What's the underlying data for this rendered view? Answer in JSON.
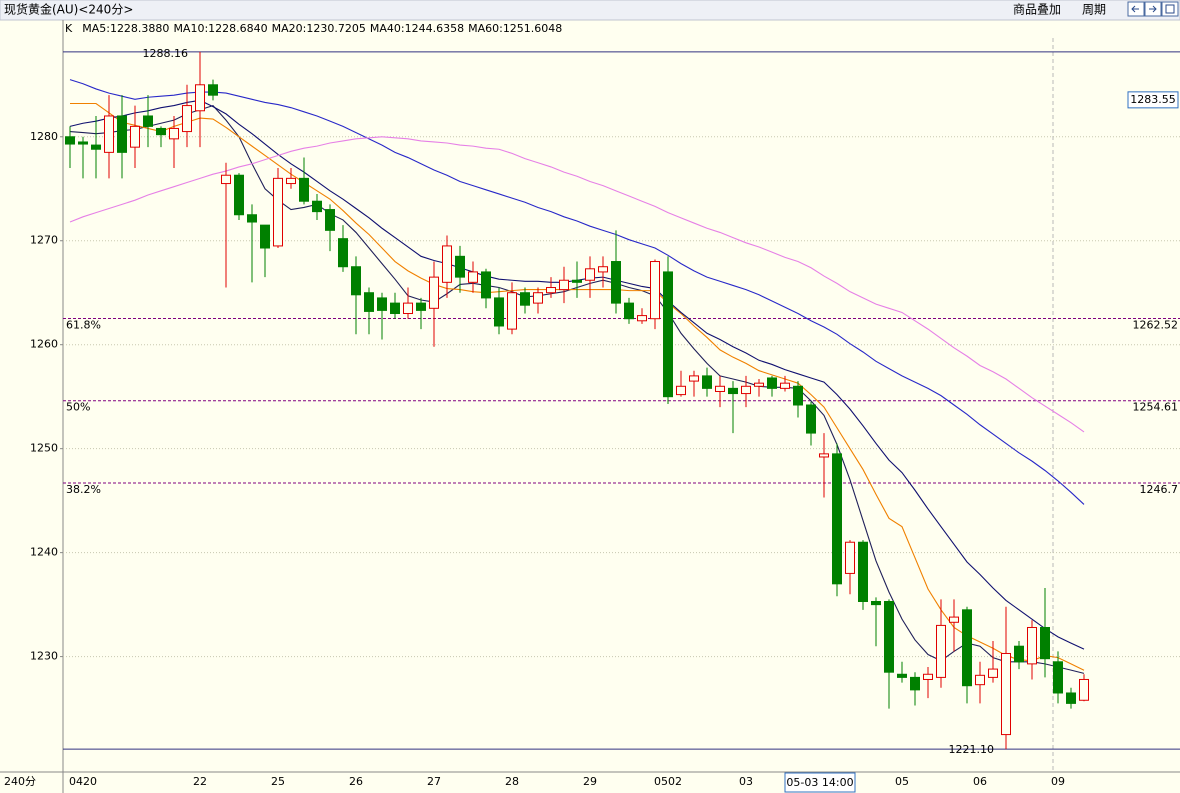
{
  "header": {
    "title": "现货黄金(AU)<240分>",
    "toolbar": [
      "商品叠加",
      "周期"
    ]
  },
  "chart_data": {
    "type": "candlestick",
    "categories": [
      null,
      "0420",
      null,
      null,
      null,
      null,
      null,
      null,
      null,
      null,
      "22",
      null,
      null,
      null,
      null,
      null,
      "25",
      null,
      null,
      null,
      null,
      null,
      "26",
      null,
      null,
      null,
      null,
      null,
      "27",
      null,
      null,
      null,
      null,
      null,
      "28",
      null,
      null,
      null,
      null,
      null,
      "29",
      null,
      null,
      null,
      null,
      null,
      "0502",
      null,
      null,
      null,
      null,
      null,
      "03",
      null,
      null,
      null,
      null,
      null,
      null,
      null,
      null,
      null,
      null,
      null,
      "05",
      null,
      null,
      null,
      null,
      null,
      "06",
      null,
      null,
      null,
      null,
      null,
      "09",
      null,
      null
    ],
    "x_axis_label": "240分",
    "cursor_time": "05-03 14:00",
    "cursor_price": 1283.55,
    "ylim": [
      1218.9,
      1289.5
    ],
    "yticks": [
      1230,
      1240,
      1250,
      1260,
      1270,
      1280
    ],
    "grid": true,
    "extreme_labels": [
      "1288.16",
      "1221.10"
    ],
    "levels": [
      {
        "label": "61.8%",
        "value": 1262.52
      },
      {
        "label": "50%",
        "value": 1254.61
      },
      {
        "label": "38.2%",
        "value": 1246.7
      }
    ],
    "up_color": "#e00000",
    "down_color": "#008000",
    "level_color": "#800080",
    "series": [
      {
        "name": "K",
        "open": [
          1280,
          1279.5,
          1279.2,
          1278.5,
          1282,
          1279,
          1282,
          1280.8,
          1279.8,
          1280.5,
          1282.5,
          1285,
          1275.5,
          1276.3,
          1272.5,
          1271.5,
          1269.5,
          1275.5,
          1276,
          1273.8,
          1273,
          1270.2,
          1267.5,
          1265,
          1264.5,
          1264,
          1263,
          1264,
          1263.5,
          1266,
          1268.5,
          1266,
          1267,
          1264.5,
          1261.5,
          1265,
          1264,
          1265,
          1265.3,
          1266.2,
          1266.2,
          1267,
          1268,
          1264,
          1262.3,
          1262.5,
          1267,
          1255.2,
          1256.5,
          1257,
          1255.5,
          1255.8,
          1255.3,
          1256,
          1256.8,
          1255.8,
          1256,
          1254.2,
          1249.2,
          1249.5,
          1238,
          1241,
          1235.3,
          1235.3,
          1228.3,
          1228,
          1227.8,
          1228,
          1233.3,
          1234.5,
          1227.3,
          1228,
          1222.5,
          1231,
          1229.3,
          1232.8,
          1229.5,
          1226.5,
          1225.8
        ],
        "high": [
          1281,
          1280,
          1282,
          1284,
          1284,
          1283,
          1284,
          1281,
          1282,
          1285,
          1288.16,
          1285.5,
          1277.5,
          1276.5,
          1273.5,
          1271.5,
          1277,
          1277,
          1278,
          1274.5,
          1273.5,
          1271.5,
          1268.5,
          1265.5,
          1265,
          1265,
          1265.5,
          1264.5,
          1268,
          1270.5,
          1269.5,
          1268,
          1267.3,
          1265.5,
          1266,
          1265.5,
          1265.5,
          1266.5,
          1267.5,
          1268,
          1268.5,
          1268.5,
          1271,
          1264.5,
          1263.5,
          1268.2,
          1268.5,
          1257.5,
          1257.5,
          1257.8,
          1257,
          1256.5,
          1257,
          1256.7,
          1257,
          1257,
          1256.5,
          1254.5,
          1251.5,
          1250.5,
          1241.2,
          1241.2,
          1235.7,
          1235.5,
          1229.5,
          1228.5,
          1229,
          1235.5,
          1235.5,
          1234.8,
          1229.5,
          1231.5,
          1234.8,
          1231.5,
          1233.5,
          1236.6,
          1230.5,
          1227,
          1228.3
        ],
        "low": [
          1277,
          1276,
          1276,
          1276,
          1276,
          1277,
          1279,
          1279,
          1277,
          1279,
          1279,
          1283.5,
          1265.5,
          1272,
          1266,
          1266.5,
          1269.3,
          1275,
          1273.5,
          1272,
          1269,
          1267,
          1261,
          1261,
          1260.5,
          1262.5,
          1262.5,
          1261.5,
          1259.8,
          1264.5,
          1265,
          1265,
          1263.5,
          1261,
          1261,
          1263,
          1263,
          1264.5,
          1264,
          1264.5,
          1264.5,
          1265.5,
          1263,
          1262,
          1262,
          1261.5,
          1254.3,
          1255,
          1255,
          1255,
          1254,
          1251.5,
          1254,
          1255,
          1255,
          1255.5,
          1253,
          1250.3,
          1245.3,
          1235.8,
          1236,
          1234.5,
          1231,
          1225,
          1227.5,
          1225.3,
          1226,
          1227,
          1230.5,
          1225.5,
          1225.5,
          1227.5,
          1221.1,
          1228.8,
          1227.8,
          1228,
          1225.5,
          1225,
          1225.7
        ],
        "close": [
          1279.3,
          1279.3,
          1278.8,
          1282,
          1278.5,
          1281,
          1281,
          1280.2,
          1280.8,
          1283,
          1285,
          1284,
          1276.3,
          1272.5,
          1271.8,
          1269.3,
          1276,
          1276,
          1273.8,
          1272.8,
          1271,
          1267.5,
          1264.8,
          1263.2,
          1263.3,
          1263,
          1264,
          1263.3,
          1266.5,
          1269.5,
          1266.5,
          1267,
          1264.5,
          1261.8,
          1265,
          1263.8,
          1265,
          1265.5,
          1266.2,
          1266,
          1267.3,
          1267.5,
          1264,
          1262.5,
          1262.8,
          1268,
          1255,
          1256,
          1257,
          1255.8,
          1256,
          1255.3,
          1256,
          1256.3,
          1255.8,
          1256.3,
          1254.2,
          1251.5,
          1249.5,
          1237,
          1241,
          1235.3,
          1235,
          1228.5,
          1228,
          1226.8,
          1228.3,
          1233,
          1233.8,
          1227.2,
          1228.2,
          1228.8,
          1230.3,
          1229.5,
          1232.8,
          1229.8,
          1226.5,
          1225.5,
          1227.8
        ]
      },
      {
        "name": "MA5:1228.3880",
        "color": "#20205a",
        "values": [
          1280.5,
          1280.4,
          1280.3,
          1280.4,
          1280.6,
          1280.7,
          1281.0,
          1281.3,
          1281.6,
          1282.2,
          1282.6,
          1283.0,
          1281.6,
          1280.0,
          1277.4,
          1275.0,
          1273.9,
          1273.0,
          1273.2,
          1273.5,
          1272.6,
          1272.0,
          1270.8,
          1269.3,
          1267.8,
          1266.3,
          1264.7,
          1264.3,
          1264.1,
          1264.9,
          1265.8,
          1265.9,
          1265.7,
          1265.5,
          1265.1,
          1264.6,
          1264.7,
          1264.9,
          1265.1,
          1265.5,
          1265.9,
          1266.2,
          1265.9,
          1265.5,
          1265.2,
          1264.7,
          1263.1,
          1261.1,
          1259.6,
          1258.2,
          1257.0,
          1256.7,
          1256.4,
          1256.0,
          1255.9,
          1255.9,
          1255.8,
          1254.6,
          1253.2,
          1250.4,
          1247.0,
          1243.1,
          1239.2,
          1236.2,
          1233.6,
          1231.6,
          1230.2,
          1229.6,
          1230.5,
          1231.3,
          1231.0,
          1229.9,
          1229.5,
          1229.5,
          1229.5,
          1229.3,
          1229.0,
          1228.7,
          1228.388
        ]
      },
      {
        "name": "MA10:1228.6840",
        "color": "#f08000",
        "values": [
          1283.2,
          1283.2,
          1283.2,
          1282.3,
          1281.4,
          1281.1,
          1280.8,
          1280.5,
          1281.0,
          1281.4,
          1281.8,
          1281.7,
          1280.9,
          1280.0,
          1279.1,
          1278.2,
          1277.3,
          1276.4,
          1275.6,
          1274.8,
          1274.0,
          1272.9,
          1271.7,
          1270.6,
          1269.3,
          1268.0,
          1267.1,
          1266.4,
          1265.8,
          1265.4,
          1265.3,
          1265.1,
          1265.0,
          1265.1,
          1265.2,
          1265.3,
          1265.3,
          1265.3,
          1265.3,
          1265.3,
          1265.3,
          1265.3,
          1265.3,
          1265.2,
          1265.2,
          1265.2,
          1264.0,
          1263.0,
          1261.8,
          1260.7,
          1259.5,
          1258.8,
          1258.2,
          1257.5,
          1257.1,
          1256.7,
          1256.3,
          1255.2,
          1254.0,
          1252.0,
          1250.0,
          1248.0,
          1245.6,
          1243.3,
          1242.5,
          1239.5,
          1236.5,
          1234.5,
          1232.8,
          1232.0,
          1231.4,
          1230.8,
          1230.1,
          1229.7,
          1229.6,
          1230.1,
          1229.9,
          1229.3,
          1228.684
        ]
      },
      {
        "name": "MA20:1230.7205",
        "color": "#101070",
        "values": [
          1281.0,
          1281.3,
          1281.5,
          1281.8,
          1282.0,
          1282.3,
          1282.5,
          1282.8,
          1283.0,
          1283.3,
          1283.5,
          1282.9,
          1282.2,
          1281.2,
          1280.3,
          1279.3,
          1278.3,
          1277.4,
          1276.6,
          1275.7,
          1274.8,
          1274.0,
          1273.1,
          1272.2,
          1271.2,
          1270.3,
          1269.4,
          1268.5,
          1268.1,
          1267.8,
          1267.4,
          1267.0,
          1266.6,
          1266.3,
          1266.2,
          1266.1,
          1266.1,
          1266.0,
          1266.0,
          1266.2,
          1266.4,
          1266.5,
          1266.2,
          1265.9,
          1265.6,
          1265.4,
          1264.2,
          1263.1,
          1262.1,
          1261.1,
          1260.5,
          1259.8,
          1259.2,
          1258.5,
          1258.1,
          1257.6,
          1257.2,
          1256.8,
          1256.4,
          1255.2,
          1253.8,
          1252.2,
          1250.5,
          1248.9,
          1247.7,
          1246.0,
          1244.2,
          1242.5,
          1240.8,
          1239.1,
          1237.9,
          1236.6,
          1235.4,
          1234.5,
          1233.6,
          1232.7,
          1231.9,
          1231.3,
          1230.7205
        ]
      },
      {
        "name": "MA40:1244.6358",
        "color": "#2828c8",
        "values": [
          1285.5,
          1285.1,
          1284.6,
          1284.2,
          1283.9,
          1283.6,
          1283.8,
          1283.9,
          1284.0,
          1284.2,
          1284.3,
          1284.3,
          1284.2,
          1283.9,
          1283.6,
          1283.3,
          1283.1,
          1282.8,
          1282.4,
          1282.0,
          1281.5,
          1281.0,
          1280.4,
          1279.8,
          1279.2,
          1278.5,
          1278.0,
          1277.4,
          1276.8,
          1276.3,
          1275.7,
          1275.3,
          1274.9,
          1274.5,
          1274.1,
          1273.7,
          1273.2,
          1272.8,
          1272.3,
          1271.9,
          1271.4,
          1271.0,
          1270.6,
          1270.1,
          1269.7,
          1269.3,
          1268.6,
          1267.8,
          1267.1,
          1266.5,
          1266.1,
          1265.7,
          1265.3,
          1264.8,
          1264.2,
          1263.6,
          1263.0,
          1262.3,
          1261.7,
          1261.0,
          1260.1,
          1259.3,
          1258.4,
          1257.7,
          1257.0,
          1256.4,
          1255.8,
          1255.1,
          1254.2,
          1253.3,
          1252.3,
          1251.4,
          1250.5,
          1249.6,
          1248.8,
          1247.9,
          1246.9,
          1245.8,
          1244.6358
        ]
      },
      {
        "name": "MA60:1251.6048",
        "color": "#e680e6",
        "values": [
          1271.8,
          1272.3,
          1272.7,
          1273.1,
          1273.5,
          1273.9,
          1274.4,
          1274.8,
          1275.2,
          1275.6,
          1276.0,
          1276.4,
          1276.7,
          1277.1,
          1277.4,
          1277.8,
          1278.2,
          1278.6,
          1278.9,
          1279.1,
          1279.4,
          1279.6,
          1279.8,
          1279.9,
          1280.0,
          1279.9,
          1279.8,
          1279.6,
          1279.5,
          1279.4,
          1279.2,
          1279.1,
          1278.9,
          1278.8,
          1278.4,
          1277.9,
          1277.5,
          1277.1,
          1276.6,
          1276.2,
          1275.7,
          1275.3,
          1274.8,
          1274.3,
          1273.8,
          1273.3,
          1272.7,
          1272.2,
          1271.7,
          1271.2,
          1270.8,
          1270.3,
          1269.8,
          1269.4,
          1268.9,
          1268.4,
          1268.0,
          1267.4,
          1266.6,
          1265.9,
          1265.1,
          1264.5,
          1263.9,
          1263.5,
          1263.1,
          1262.3,
          1261.5,
          1260.6,
          1259.7,
          1258.9,
          1258.0,
          1257.4,
          1256.7,
          1255.8,
          1254.9,
          1254.1,
          1253.3,
          1252.5,
          1251.6048
        ]
      }
    ]
  }
}
